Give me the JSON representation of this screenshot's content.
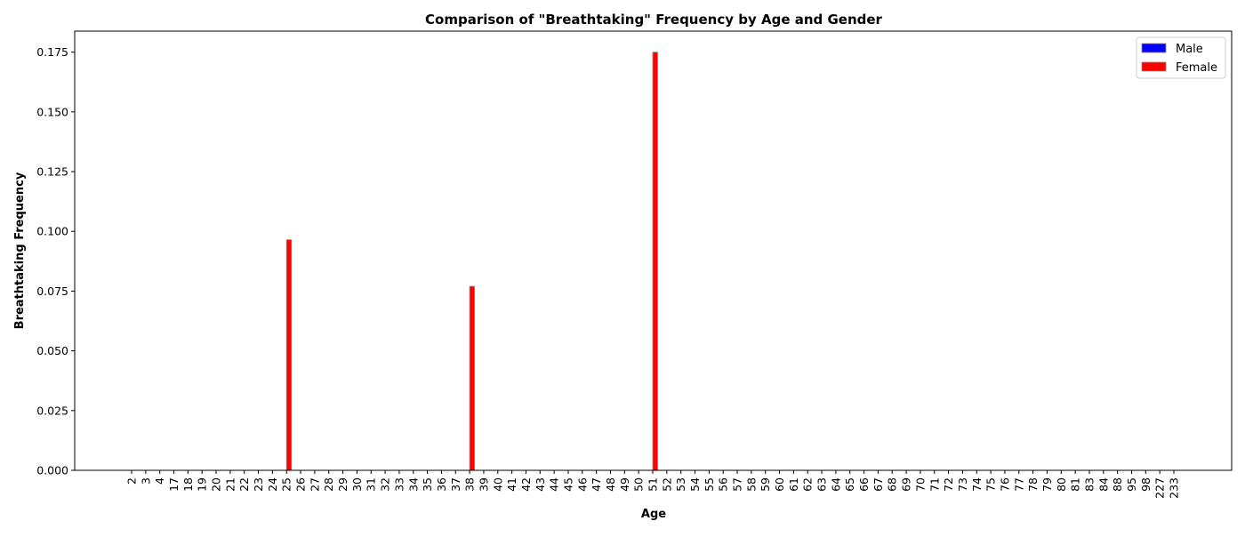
{
  "chart_data": {
    "type": "bar",
    "title": "Comparison of \"Breathtaking\" Frequency by Age and Gender",
    "xlabel": "Age",
    "ylabel": "Breathtaking Frequency",
    "ylim": [
      0,
      0.1838
    ],
    "yticks": [
      "0.000",
      "0.025",
      "0.050",
      "0.075",
      "0.100",
      "0.125",
      "0.150",
      "0.175"
    ],
    "grid": false,
    "legend_placement": "top-right",
    "categories": [
      "2",
      "3",
      "4",
      "17",
      "18",
      "19",
      "20",
      "21",
      "22",
      "23",
      "24",
      "25",
      "26",
      "27",
      "28",
      "29",
      "30",
      "31",
      "32",
      "33",
      "34",
      "35",
      "36",
      "37",
      "38",
      "39",
      "40",
      "41",
      "42",
      "43",
      "44",
      "45",
      "46",
      "47",
      "48",
      "49",
      "50",
      "51",
      "52",
      "53",
      "54",
      "55",
      "56",
      "57",
      "58",
      "59",
      "60",
      "61",
      "62",
      "63",
      "64",
      "65",
      "66",
      "67",
      "68",
      "69",
      "70",
      "71",
      "72",
      "73",
      "74",
      "75",
      "76",
      "77",
      "78",
      "79",
      "80",
      "81",
      "83",
      "84",
      "88",
      "95",
      "98",
      "227",
      "233"
    ],
    "series": [
      {
        "name": "Male",
        "color": "#0000ff",
        "values": [
          0,
          0,
          0,
          0,
          0,
          0,
          0,
          0,
          0,
          0,
          0,
          0,
          0,
          0,
          0,
          0,
          0,
          0,
          0,
          0,
          0,
          0,
          0,
          0,
          0,
          0,
          0,
          0,
          0,
          0,
          0,
          0,
          0,
          0,
          0,
          0,
          0,
          0,
          0,
          0,
          0,
          0,
          0,
          0,
          0,
          0,
          0,
          0,
          0,
          0,
          0,
          0,
          0,
          0,
          0,
          0,
          0,
          0,
          0,
          0,
          0,
          0,
          0,
          0,
          0,
          0,
          0,
          0,
          0,
          0,
          0,
          0,
          0,
          0,
          0
        ]
      },
      {
        "name": "Female",
        "color": "#ff0000",
        "values": [
          0,
          0,
          0,
          0,
          0,
          0,
          0,
          0,
          0,
          0,
          0,
          0.0965,
          0,
          0,
          0,
          0,
          0,
          0,
          0,
          0,
          0,
          0,
          0,
          0,
          0.077,
          0,
          0,
          0,
          0,
          0,
          0,
          0,
          0,
          0,
          0,
          0,
          0,
          0.175,
          0,
          0,
          0,
          0,
          0,
          0,
          0,
          0,
          0,
          0,
          0,
          0,
          0,
          0,
          0,
          0,
          0,
          0,
          0,
          0,
          0,
          0,
          0,
          0,
          0,
          0,
          0,
          0,
          0,
          0,
          0,
          0,
          0,
          0,
          0,
          0,
          0
        ]
      }
    ]
  }
}
